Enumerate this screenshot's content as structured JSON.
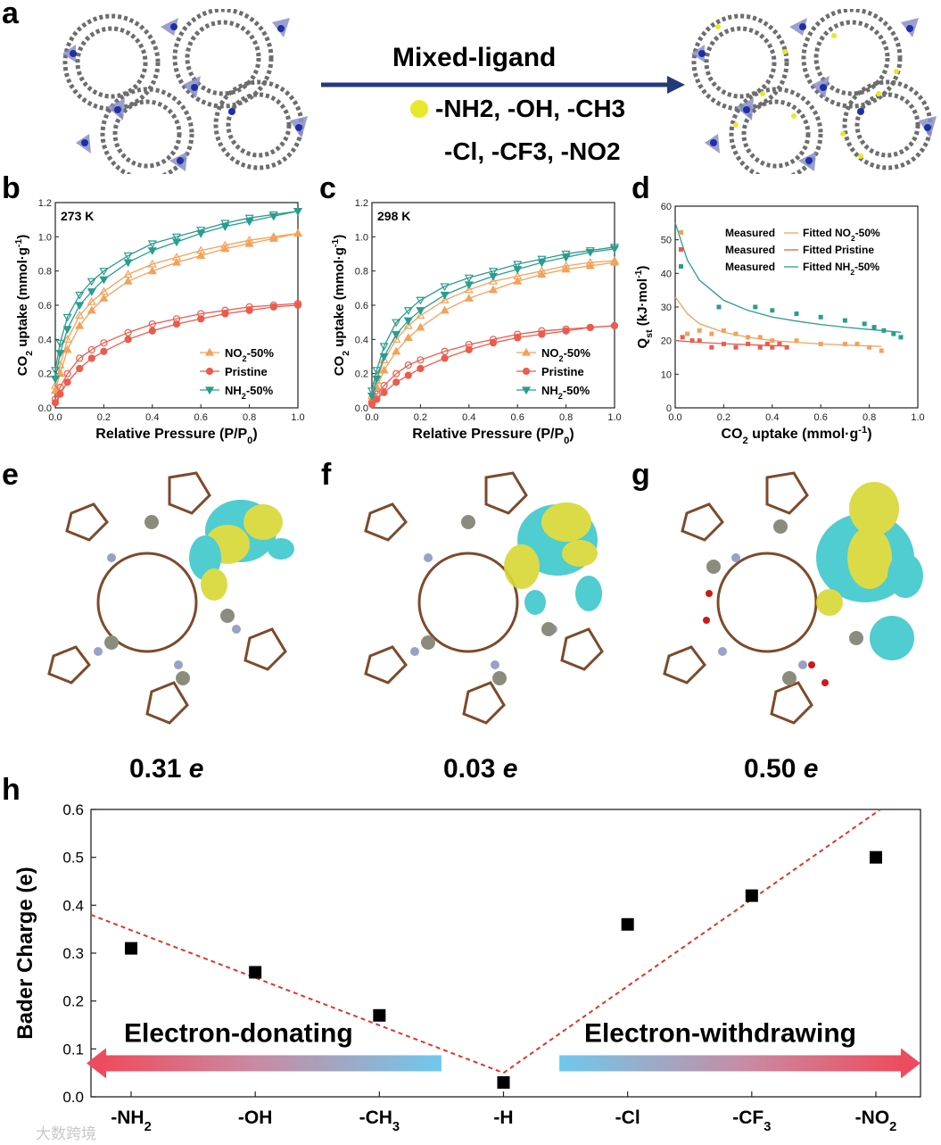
{
  "panel_letters": {
    "a": "a",
    "b": "b",
    "c": "c",
    "d": "d",
    "e": "e",
    "f": "f",
    "g": "g",
    "h": "h"
  },
  "panel_a": {
    "arrow_label": "Mixed-ligand",
    "substituents_line1": "-NH2, -OH, -CH3",
    "substituents_line2": "-Cl, -CF3, -NO2",
    "dot_color": "#e8e82a",
    "arrow_color": "#243a7a"
  },
  "charges": {
    "e": "0.31",
    "f": "0.03",
    "g": "0.50",
    "unit": "e"
  },
  "watermark": "大数跨境",
  "colors": {
    "no2": "#f4a15a",
    "pristine": "#ec5b4d",
    "nh2": "#2a9d8f",
    "red_line": "#e0342a",
    "cyan": "#3cc8cc",
    "yellow": "#d8d835"
  },
  "chart_data": [
    {
      "id": "b",
      "type": "line",
      "annotation": "273 K",
      "xlabel": "Relative Pressure (P/P0)",
      "ylabel": "CO2 uptake (mmol·g-1)",
      "xlim": [
        0,
        1.0
      ],
      "ylim": [
        0,
        1.2
      ],
      "xticks": [
        "0.0",
        "0.2",
        "0.4",
        "0.6",
        "0.8",
        "1.0"
      ],
      "yticks": [
        "0.0",
        "0.2",
        "0.4",
        "0.6",
        "0.8",
        "1.0",
        "1.2"
      ],
      "legend": "bottom-right",
      "series": [
        {
          "name": "NO2-50%",
          "color": "#f4a15a",
          "marker": "triangle-up",
          "x": [
            0,
            0.02,
            0.05,
            0.1,
            0.15,
            0.2,
            0.3,
            0.4,
            0.5,
            0.6,
            0.7,
            0.8,
            0.9,
            1.0
          ],
          "adsorption": [
            0.1,
            0.2,
            0.34,
            0.48,
            0.57,
            0.64,
            0.74,
            0.8,
            0.85,
            0.89,
            0.93,
            0.96,
            0.99,
            1.02
          ],
          "desorption": [
            0.13,
            0.25,
            0.4,
            0.54,
            0.62,
            0.68,
            0.78,
            0.84,
            0.88,
            0.92,
            0.95,
            0.98,
            1.0,
            1.02
          ]
        },
        {
          "name": "Pristine",
          "color": "#ec5b4d",
          "marker": "circle",
          "x": [
            0,
            0.02,
            0.05,
            0.1,
            0.15,
            0.2,
            0.3,
            0.4,
            0.5,
            0.6,
            0.7,
            0.8,
            0.9,
            1.0
          ],
          "adsorption": [
            0.03,
            0.08,
            0.15,
            0.23,
            0.29,
            0.33,
            0.4,
            0.45,
            0.49,
            0.52,
            0.55,
            0.57,
            0.59,
            0.6
          ],
          "desorption": [
            0.05,
            0.12,
            0.2,
            0.29,
            0.34,
            0.38,
            0.44,
            0.49,
            0.52,
            0.55,
            0.57,
            0.59,
            0.6,
            0.61
          ]
        },
        {
          "name": "NH2-50%",
          "color": "#2a9d8f",
          "marker": "triangle-down",
          "x": [
            0,
            0.02,
            0.05,
            0.1,
            0.15,
            0.2,
            0.3,
            0.4,
            0.5,
            0.6,
            0.7,
            0.8,
            0.9,
            1.0
          ],
          "adsorption": [
            0.17,
            0.32,
            0.46,
            0.6,
            0.68,
            0.75,
            0.85,
            0.92,
            0.97,
            1.02,
            1.06,
            1.09,
            1.12,
            1.15
          ],
          "desorption": [
            0.22,
            0.38,
            0.53,
            0.66,
            0.74,
            0.8,
            0.89,
            0.96,
            1.0,
            1.04,
            1.08,
            1.11,
            1.13,
            1.15
          ]
        }
      ]
    },
    {
      "id": "c",
      "type": "line",
      "annotation": "298 K",
      "xlabel": "Relative Pressure (P/P0)",
      "ylabel": "CO2 uptake (mmol·g-1)",
      "xlim": [
        0,
        1.0
      ],
      "ylim": [
        0,
        1.2
      ],
      "xticks": [
        "0.0",
        "0.2",
        "0.4",
        "0.6",
        "0.8",
        "1.0"
      ],
      "yticks": [
        "0.0",
        "0.2",
        "0.4",
        "0.6",
        "0.8",
        "1.0",
        "1.2"
      ],
      "legend": "bottom-right",
      "series": [
        {
          "name": "NO2-50%",
          "color": "#f4a15a",
          "marker": "triangle-up",
          "x": [
            0,
            0.02,
            0.05,
            0.1,
            0.15,
            0.2,
            0.3,
            0.4,
            0.5,
            0.6,
            0.7,
            0.8,
            0.9,
            1.0
          ],
          "adsorption": [
            0.05,
            0.12,
            0.22,
            0.33,
            0.41,
            0.47,
            0.57,
            0.64,
            0.69,
            0.74,
            0.78,
            0.81,
            0.83,
            0.85
          ],
          "desorption": [
            0.07,
            0.16,
            0.28,
            0.4,
            0.48,
            0.54,
            0.63,
            0.69,
            0.74,
            0.77,
            0.8,
            0.83,
            0.85,
            0.86
          ]
        },
        {
          "name": "Pristine",
          "color": "#ec5b4d",
          "marker": "circle",
          "x": [
            0,
            0.02,
            0.05,
            0.1,
            0.15,
            0.2,
            0.3,
            0.4,
            0.5,
            0.6,
            0.7,
            0.8,
            0.9,
            1.0
          ],
          "adsorption": [
            0.02,
            0.05,
            0.09,
            0.15,
            0.19,
            0.23,
            0.29,
            0.34,
            0.38,
            0.41,
            0.43,
            0.45,
            0.47,
            0.48
          ],
          "desorption": [
            0.03,
            0.08,
            0.13,
            0.2,
            0.25,
            0.28,
            0.33,
            0.37,
            0.4,
            0.43,
            0.45,
            0.46,
            0.47,
            0.48
          ]
        },
        {
          "name": "NH2-50%",
          "color": "#2a9d8f",
          "marker": "triangle-down",
          "x": [
            0,
            0.02,
            0.05,
            0.1,
            0.15,
            0.2,
            0.3,
            0.4,
            0.5,
            0.6,
            0.7,
            0.8,
            0.9,
            1.0
          ],
          "adsorption": [
            0.07,
            0.17,
            0.3,
            0.43,
            0.51,
            0.57,
            0.66,
            0.72,
            0.77,
            0.81,
            0.85,
            0.88,
            0.91,
            0.93
          ],
          "desorption": [
            0.1,
            0.22,
            0.36,
            0.5,
            0.57,
            0.63,
            0.71,
            0.76,
            0.8,
            0.84,
            0.87,
            0.9,
            0.92,
            0.94
          ]
        }
      ]
    },
    {
      "id": "d",
      "type": "scatter",
      "xlabel": "CO2 uptake (mmol·g-1)",
      "ylabel": "Qst (kJ·mol-1)",
      "xlim": [
        0,
        1.0
      ],
      "ylim": [
        0,
        60
      ],
      "xticks": [
        "0.0",
        "0.2",
        "0.4",
        "0.6",
        "0.8",
        "1.0"
      ],
      "yticks": [
        "0",
        "10",
        "20",
        "30",
        "40",
        "50",
        "60"
      ],
      "legend": "top-right",
      "measured_label": "Measured",
      "series": [
        {
          "name": "NO2-50%",
          "fit_label": "Fitted NO2-50%",
          "color": "#f4a15a",
          "x": [
            0.05,
            0.1,
            0.15,
            0.2,
            0.25,
            0.3,
            0.35,
            0.4,
            0.5,
            0.6,
            0.7,
            0.75,
            0.8,
            0.85
          ],
          "y": [
            22,
            23,
            22,
            23,
            22,
            21,
            21,
            20,
            20,
            19,
            19,
            19,
            18,
            17
          ],
          "fit_x": [
            0,
            0.05,
            0.1,
            0.2,
            0.3,
            0.4,
            0.5,
            0.6,
            0.7,
            0.8,
            0.85
          ],
          "fit_y": [
            33,
            28,
            25,
            22.5,
            21,
            20,
            19.5,
            19,
            18.7,
            18.4,
            18.3
          ]
        },
        {
          "name": "Pristine",
          "fit_label": "Fitted Pristine",
          "color": "#ec5b4d",
          "x": [
            0.03,
            0.07,
            0.1,
            0.15,
            0.2,
            0.25,
            0.3,
            0.35,
            0.38,
            0.4,
            0.43,
            0.46
          ],
          "y": [
            21,
            20,
            20,
            18,
            19,
            18,
            19,
            18,
            19,
            18,
            19,
            18
          ],
          "fit_x": [
            0,
            0.1,
            0.2,
            0.3,
            0.4,
            0.46
          ],
          "fit_y": [
            20,
            19.5,
            19.1,
            18.8,
            18.5,
            18.4
          ]
        },
        {
          "name": "NH2-50%",
          "fit_label": "Fitted NH2-50%",
          "color": "#2a9d8f",
          "x": [
            0.18,
            0.33,
            0.4,
            0.5,
            0.6,
            0.7,
            0.78,
            0.82,
            0.86,
            0.9,
            0.93
          ],
          "y": [
            30,
            30,
            29,
            28,
            27,
            26,
            25,
            24,
            23,
            22,
            21
          ],
          "fit_x": [
            0,
            0.05,
            0.1,
            0.2,
            0.3,
            0.4,
            0.5,
            0.6,
            0.7,
            0.8,
            0.93
          ],
          "fit_y": [
            55,
            44,
            38,
            32,
            29,
            27,
            25.8,
            24.8,
            24,
            23.3,
            22.5
          ]
        }
      ]
    },
    {
      "id": "h",
      "type": "scatter",
      "xlabel": "",
      "ylabel": "Bader Charge (e)",
      "ylim": [
        0,
        0.6
      ],
      "yticks": [
        "0.0",
        "0.1",
        "0.2",
        "0.3",
        "0.4",
        "0.5",
        "0.6"
      ],
      "categories": [
        "-NH2",
        "-OH",
        "-CH3",
        "-H",
        "-Cl",
        "-CF3",
        "-NO2"
      ],
      "values": [
        0.31,
        0.26,
        0.17,
        0.03,
        0.36,
        0.42,
        0.5
      ],
      "arrow_left_label": "Electron-donating",
      "arrow_right_label": "Electron-withdrawing"
    }
  ]
}
